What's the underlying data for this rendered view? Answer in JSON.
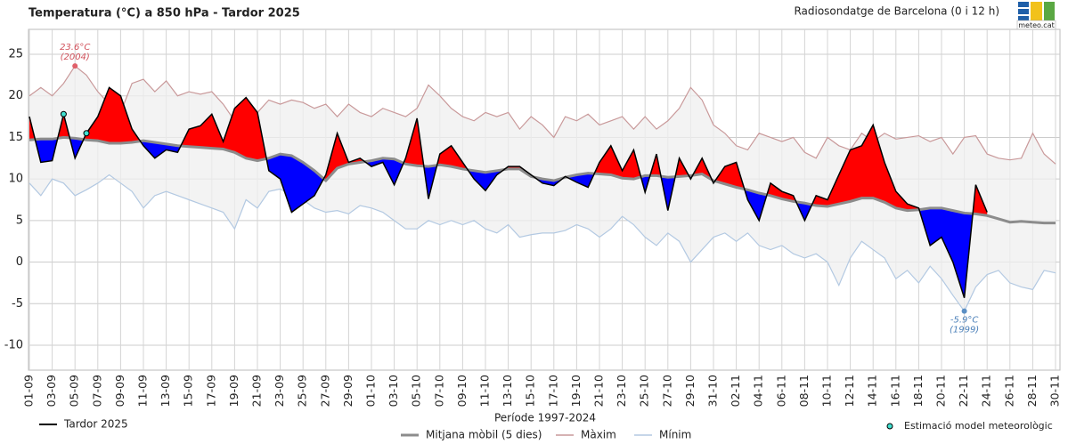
{
  "chart_data": {
    "type": "line",
    "title": "Temperatura (°C) a 850 hPa - Tardor 2025",
    "subtitle": "Radiosondatge de Barcelona (0 i 12 h)",
    "logo": "meteo.cat",
    "legend_group": "Període 1997-2024",
    "annotations": {
      "max": {
        "text": "23.6°C",
        "year": "(2004)"
      },
      "min": {
        "text": "-5.9°C",
        "year": "(1999)"
      }
    },
    "categories": [
      "01-09",
      null,
      "03-09",
      null,
      "05-09",
      null,
      "07-09",
      null,
      "09-09",
      null,
      "11-09",
      null,
      "13-09",
      null,
      "15-09",
      null,
      "17-09",
      null,
      "19-09",
      null,
      "21-09",
      null,
      "23-09",
      null,
      "25-09",
      null,
      "27-09",
      null,
      "29-09",
      null,
      "01-10",
      null,
      "03-10",
      null,
      "05-10",
      null,
      "07-10",
      null,
      "09-10",
      null,
      "11-10",
      null,
      "13-10",
      null,
      "15-10",
      null,
      "17-10",
      null,
      "19-10",
      null,
      "21-10",
      null,
      "23-10",
      null,
      "25-10",
      null,
      "27-10",
      null,
      "29-10",
      null,
      "31-10",
      null,
      "02-11",
      null,
      "04-11",
      null,
      "06-11",
      null,
      "08-11",
      null,
      "10-11",
      null,
      "12-11",
      null,
      "14-11",
      null,
      "16-11",
      null,
      "18-11",
      null,
      "20-11",
      null,
      "22-11",
      null,
      "24-11",
      null,
      "26-11",
      null,
      "28-11",
      null,
      "30-11"
    ],
    "ylim": [
      -13,
      28
    ],
    "yticks": [
      -10,
      -5,
      0,
      5,
      10,
      15,
      20,
      25
    ],
    "grid": true,
    "above_color": "#ff0000",
    "below_color": "#0000ff",
    "band_color": "#efefef",
    "series": [
      {
        "name": "Tardor 2025",
        "color": "#000000",
        "values": [
          17.5,
          12,
          12.2,
          17.8,
          12.5,
          15.5,
          17.5,
          21,
          20,
          16,
          14,
          12.5,
          13.5,
          13.2,
          16,
          16.4,
          17.8,
          14.5,
          18.5,
          19.8,
          18,
          11,
          10,
          6,
          7,
          8,
          10.5,
          15.5,
          12,
          12.5,
          11.5,
          12,
          9.3,
          12.5,
          17.3,
          7.6,
          13,
          14,
          12,
          10,
          8.6,
          10.5,
          11.5,
          11.5,
          10.5,
          9.5,
          9.2,
          10.3,
          9.6,
          9,
          12,
          14,
          11,
          13.5,
          8.4,
          13,
          6.2,
          12.5,
          10,
          12.5,
          9.5,
          11.5,
          12,
          7.5,
          5,
          9.5,
          8.5,
          8,
          5,
          8,
          7.5,
          10.5,
          13.5,
          14,
          16.5,
          12,
          8.5,
          7,
          6.5,
          2,
          3,
          0,
          -4.3,
          9.3,
          6,
          null,
          null,
          null,
          null,
          null,
          null
        ]
      },
      {
        "name": "Mitjana mòbil (5 dies)",
        "color": "#8c8c8c",
        "values": [
          14.7,
          14.8,
          14.8,
          15,
          14.9,
          14.7,
          14.6,
          14.3,
          14.3,
          14.4,
          14.6,
          14.4,
          14.2,
          14,
          13.9,
          13.8,
          13.7,
          13.6,
          13.2,
          12.5,
          12.2,
          12.5,
          13,
          12.8,
          12,
          11,
          9.8,
          11.3,
          11.8,
          12,
          12.2,
          12.5,
          12.4,
          11.8,
          11.6,
          11.5,
          11.7,
          11.5,
          11.2,
          11,
          10.8,
          11,
          11.2,
          11.2,
          10.3,
          10,
          9.8,
          10.2,
          10.5,
          10.7,
          10.6,
          10.5,
          10.1,
          10,
          10.4,
          10.4,
          10.2,
          10.3,
          10.4,
          10.6,
          9.8,
          9.4,
          9,
          8.7,
          8.3,
          8,
          7.6,
          7.3,
          7.1,
          6.8,
          6.7,
          7,
          7.3,
          7.7,
          7.7,
          7.2,
          6.5,
          6.2,
          6.3,
          6.5,
          6.5,
          6.2,
          5.9,
          5.8,
          5.6,
          5.2,
          4.8,
          4.9,
          4.8,
          4.7,
          4.7
        ]
      },
      {
        "name": "Màxim",
        "color": "#c9999a",
        "values": [
          20,
          21,
          20,
          21.5,
          23.6,
          22.5,
          20.5,
          19,
          18,
          21.5,
          22,
          20.5,
          21.8,
          20,
          20.5,
          20.2,
          20.5,
          19,
          17,
          16.5,
          18,
          19.5,
          19,
          19.5,
          19.2,
          18.5,
          19,
          17.5,
          19,
          18,
          17.5,
          18.5,
          18,
          17.5,
          18.5,
          21.3,
          20,
          18.5,
          17.5,
          17,
          18,
          17.5,
          18,
          16,
          17.5,
          16.5,
          15,
          17.5,
          17,
          17.8,
          16.5,
          17,
          17.5,
          16,
          17.5,
          16,
          17,
          18.5,
          21,
          19.5,
          16.5,
          15.5,
          14,
          13.5,
          15.5,
          15,
          14.5,
          15,
          13.2,
          12.5,
          15,
          14,
          13.5,
          15.5,
          14.5,
          15.5,
          14.8,
          15,
          15.2,
          14.5,
          15,
          13,
          15,
          15.2,
          13,
          12.5,
          12.3,
          12.5,
          15.5,
          13,
          11.8
        ]
      },
      {
        "name": "Mínim",
        "color": "#b3c9e2",
        "values": [
          9.5,
          8,
          10,
          9.5,
          8,
          8.7,
          9.5,
          10.5,
          9.5,
          8.5,
          6.5,
          8,
          8.5,
          8,
          7.5,
          7,
          6.5,
          6,
          4,
          7.5,
          6.5,
          8.5,
          8.8,
          8,
          7.5,
          6.5,
          6,
          6.2,
          5.8,
          6.8,
          6.5,
          6,
          5,
          4,
          4,
          5,
          4.5,
          5,
          4.5,
          5,
          4,
          3.5,
          4.5,
          3,
          3.3,
          3.5,
          3.5,
          3.8,
          4.5,
          4,
          3,
          4,
          5.5,
          4.5,
          3,
          2,
          3.5,
          2.5,
          0,
          1.5,
          3,
          3.5,
          2.5,
          3.5,
          2,
          1.5,
          2,
          1,
          0.5,
          1,
          0,
          -2.8,
          0.5,
          2.5,
          1.5,
          0.5,
          -2,
          -1,
          -2.5,
          -0.5,
          -2,
          -4,
          -5.9,
          -3,
          -1.5,
          -1,
          -2.5,
          -3,
          -3.3,
          -1,
          -1.3
        ]
      },
      {
        "name": "Estimació model meteorològic",
        "color": "#40e0d0",
        "values": [
          null,
          null,
          null,
          17.8,
          null,
          15.5,
          null,
          null,
          null,
          null,
          null,
          null,
          null,
          null,
          null,
          null,
          null,
          null,
          null,
          null,
          null,
          null,
          null,
          null,
          null,
          null,
          null,
          null,
          null,
          null,
          null,
          null,
          null,
          null,
          null,
          null,
          null,
          null,
          null,
          null,
          null,
          null,
          null,
          null,
          null,
          null,
          null,
          null,
          null,
          null,
          null,
          null,
          null,
          null,
          null,
          null,
          null,
          null,
          null,
          null,
          null,
          null,
          null,
          null,
          null,
          null,
          null,
          null,
          null,
          null,
          null,
          null,
          null,
          null,
          null,
          null,
          null,
          null,
          null,
          null,
          null,
          null,
          null,
          null,
          null,
          null,
          null,
          null,
          null,
          null,
          null
        ]
      }
    ]
  }
}
